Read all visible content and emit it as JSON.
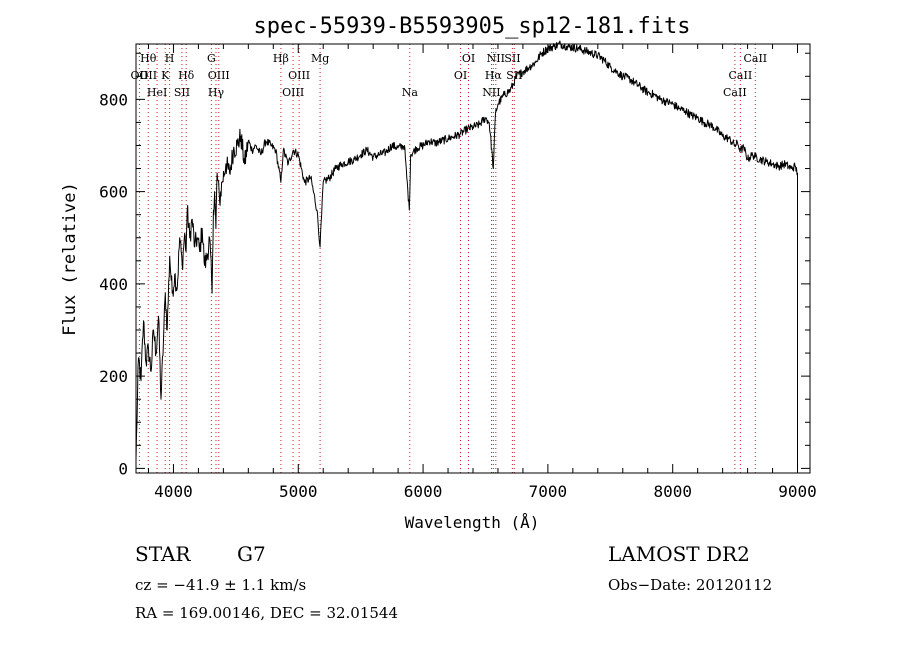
{
  "chart_data": {
    "type": "line",
    "title": "spec-55939-B5593905_sp12-181.fits",
    "xlabel": "Wavelength (Å)",
    "ylabel": "Flux (relative)",
    "xlim": [
      3700,
      9100
    ],
    "ylim": [
      -10,
      920
    ],
    "xticks": [
      4000,
      5000,
      6000,
      7000,
      8000,
      9000
    ],
    "yticks": [
      0,
      200,
      400,
      600,
      800
    ],
    "grid": false,
    "series": [
      {
        "x": [
          3700,
          3720,
          3740,
          3760,
          3780,
          3800,
          3820,
          3840,
          3860,
          3880,
          3900,
          3920,
          3935,
          3950,
          3970,
          3990,
          4010,
          4030,
          4050,
          4070,
          4090,
          4101,
          4110,
          4130,
          4150,
          4170,
          4190,
          4210,
          4230,
          4250,
          4270,
          4290,
          4310,
          4320,
          4330,
          4340,
          4350,
          4370,
          4390,
          4420,
          4450,
          4480,
          4510,
          4540,
          4570,
          4600,
          4630,
          4660,
          4700,
          4740,
          4780,
          4820,
          4861,
          4880,
          4920,
          4960,
          5000,
          5050,
          5100,
          5150,
          5175,
          5200,
          5250,
          5300,
          5350,
          5400,
          5450,
          5500,
          5550,
          5600,
          5650,
          5700,
          5750,
          5800,
          5850,
          5890,
          5900,
          5950,
          6000,
          6050,
          6100,
          6150,
          6200,
          6250,
          6300,
          6350,
          6400,
          6450,
          6500,
          6530,
          6563,
          6580,
          6600,
          6650,
          6700,
          6750,
          6800,
          6850,
          6900,
          6950,
          7000,
          7050,
          7100,
          7150,
          7200,
          7250,
          7300,
          7350,
          7400,
          7450,
          7500,
          7550,
          7600,
          7650,
          7700,
          7750,
          7800,
          7850,
          7900,
          7950,
          8000,
          8050,
          8100,
          8150,
          8200,
          8250,
          8300,
          8350,
          8400,
          8450,
          8498,
          8520,
          8542,
          8570,
          8600,
          8640,
          8662,
          8700,
          8750,
          8800,
          8850,
          8900,
          8950,
          8980,
          9000
        ],
        "y": [
          20,
          240,
          190,
          320,
          230,
          260,
          210,
          300,
          250,
          330,
          150,
          280,
          380,
          300,
          460,
          380,
          420,
          390,
          500,
          440,
          510,
          470,
          560,
          500,
          540,
          480,
          500,
          470,
          520,
          440,
          460,
          500,
          380,
          560,
          600,
          520,
          640,
          580,
          620,
          660,
          640,
          690,
          700,
          720,
          660,
          710,
          690,
          700,
          680,
          710,
          700,
          690,
          620,
          690,
          660,
          690,
          680,
          620,
          630,
          560,
          480,
          620,
          630,
          650,
          660,
          665,
          670,
          680,
          690,
          675,
          680,
          685,
          700,
          695,
          700,
          560,
          680,
          695,
          700,
          710,
          705,
          710,
          715,
          720,
          725,
          735,
          740,
          745,
          760,
          750,
          650,
          770,
          790,
          810,
          820,
          850,
          860,
          870,
          880,
          900,
          910,
          915,
          920,
          915,
          912,
          910,
          905,
          900,
          895,
          885,
          870,
          860,
          850,
          845,
          835,
          825,
          815,
          810,
          800,
          795,
          790,
          780,
          775,
          765,
          760,
          750,
          745,
          735,
          720,
          715,
          700,
          705,
          690,
          695,
          670,
          680,
          675,
          670,
          665,
          660,
          655,
          660,
          650,
          655,
          640
        ]
      }
    ],
    "lines": [
      {
        "x": 3727,
        "labels": [
          "OII"
        ],
        "row": 2
      },
      {
        "x": 3798,
        "labels": [
          "Hθ",
          "OII"
        ],
        "row": 1
      },
      {
        "x": 3869,
        "labels": [
          "HeI"
        ],
        "row": 3
      },
      {
        "x": 3934,
        "labels": [
          "K"
        ],
        "row": 2
      },
      {
        "x": 3969,
        "labels": [
          "H"
        ],
        "row": 1
      },
      {
        "x": 4068,
        "labels": [
          "SII"
        ],
        "row": 3
      },
      {
        "x": 4102,
        "labels": [
          "Hδ"
        ],
        "row": 2
      },
      {
        "x": 4304,
        "labels": [
          "G"
        ],
        "row": 1
      },
      {
        "x": 4341,
        "labels": [
          "Hγ"
        ],
        "row": 3
      },
      {
        "x": 4363,
        "labels": [
          "OIII"
        ],
        "row": 2
      },
      {
        "x": 4861,
        "labels": [
          "Hβ"
        ],
        "row": 1
      },
      {
        "x": 4959,
        "labels": [
          "OIII"
        ],
        "row": 3
      },
      {
        "x": 5007,
        "labels": [
          "OIII"
        ],
        "row": 2
      },
      {
        "x": 5175,
        "labels": [
          "Mg"
        ],
        "row": 1
      },
      {
        "x": 5894,
        "labels": [
          "Na"
        ],
        "row": 3
      },
      {
        "x": 6300,
        "labels": [
          "OI"
        ],
        "row": 2
      },
      {
        "x": 6364,
        "labels": [
          "OI"
        ],
        "row": 1
      },
      {
        "x": 6548,
        "labels": [
          "NII"
        ],
        "row": 3
      },
      {
        "x": 6563,
        "labels": [
          "Hα"
        ],
        "row": 2
      },
      {
        "x": 6583,
        "labels": [
          "NII"
        ],
        "row": 1
      },
      {
        "x": 6716,
        "labels": [
          "SII"
        ],
        "row": 1
      },
      {
        "x": 6731,
        "labels": [
          "SII"
        ],
        "row": 2
      },
      {
        "x": 8498,
        "labels": [
          "CaII"
        ],
        "row": 3
      },
      {
        "x": 8542,
        "labels": [
          "CaII"
        ],
        "row": 2
      },
      {
        "x": 8662,
        "labels": [
          "CaII"
        ],
        "row": 1
      }
    ],
    "line_color": "#000000",
    "marker_color": "#cc2222"
  },
  "info": {
    "class": "STAR",
    "subclass": "G7",
    "survey": "LAMOST DR2",
    "cz": "cz = −41.9 ± 1.1 km/s",
    "obs_date": "Obs−Date: 20120112",
    "coords": "RA = 169.00146, DEC =  32.01544"
  }
}
